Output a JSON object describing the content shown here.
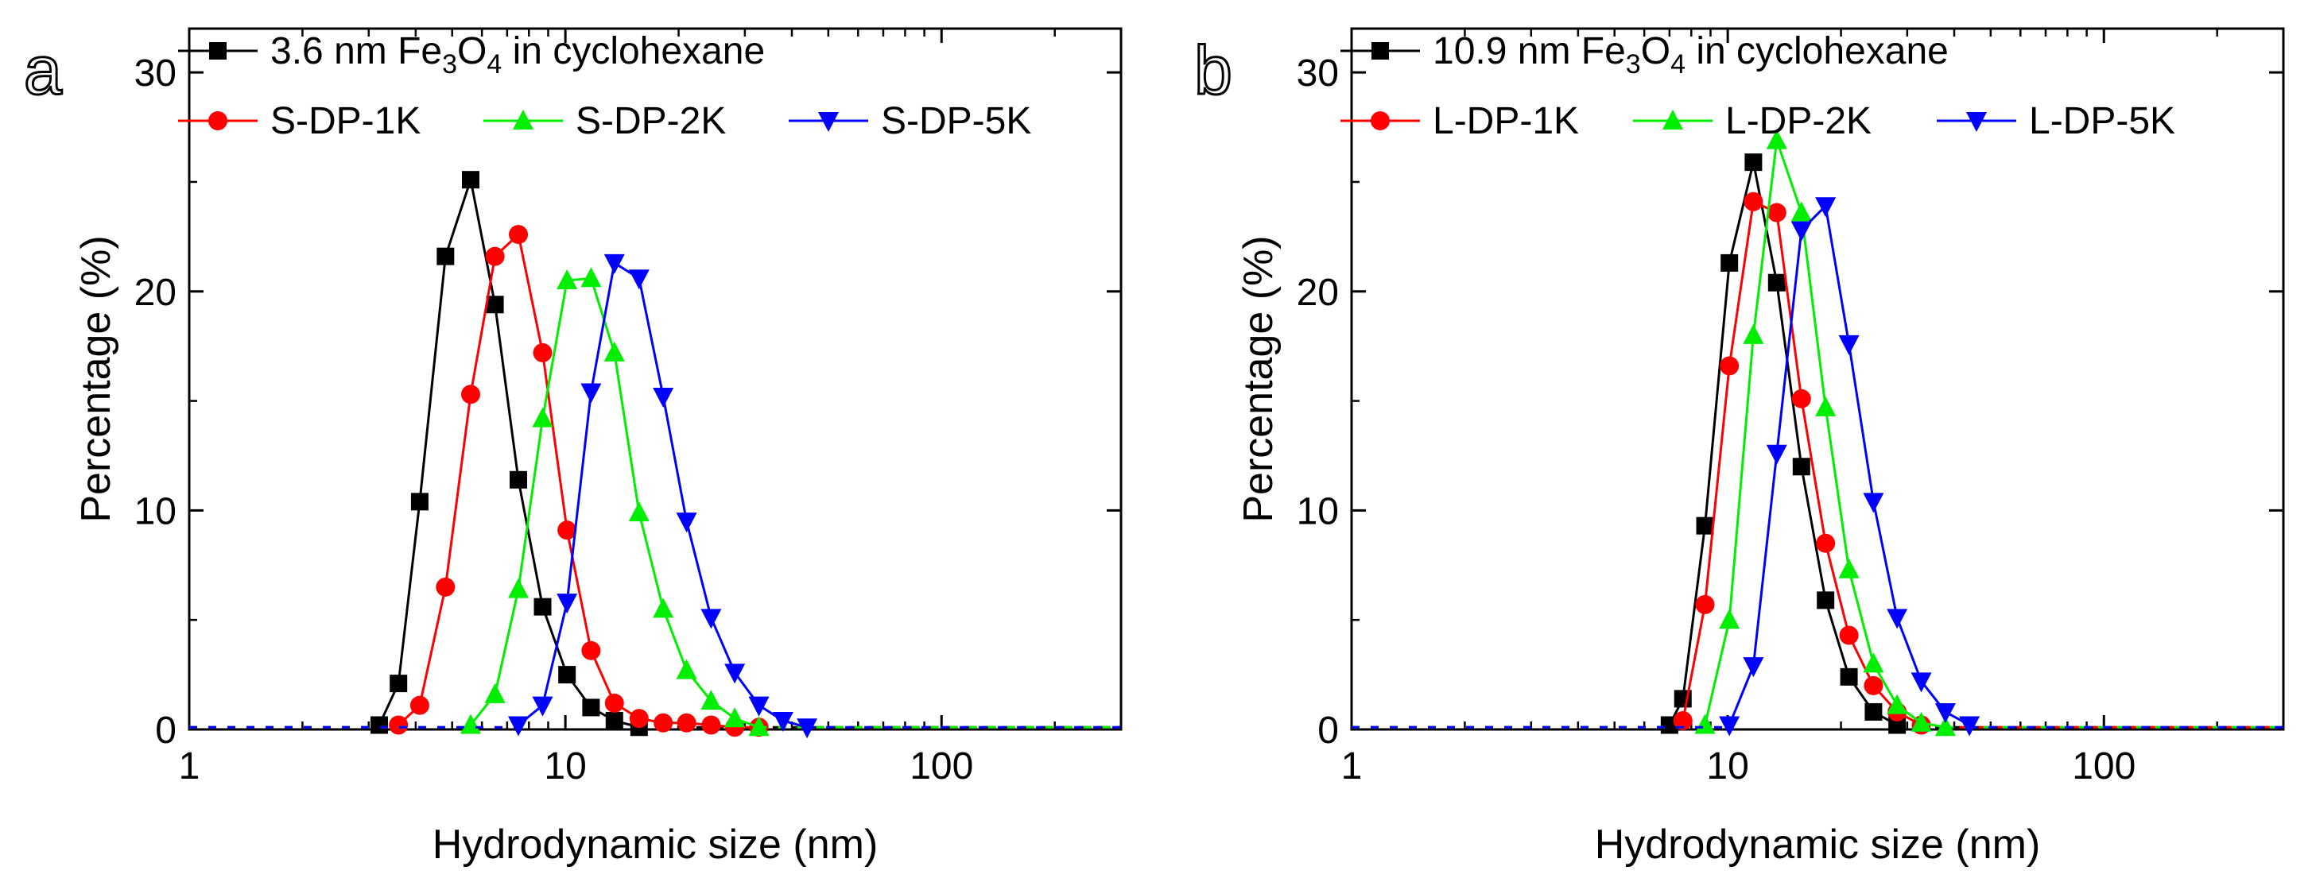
{
  "chart_data": [
    {
      "type": "line",
      "panel": "a",
      "title": "",
      "xlabel": "Hydrodynamic size (nm)",
      "ylabel": "Percentage (%)",
      "xscale": "log",
      "xlim": [
        1,
        300
      ],
      "ylim": [
        0,
        32
      ],
      "xticks": [
        1,
        10,
        100
      ],
      "xtick_labels": [
        "1",
        "10",
        "100"
      ],
      "yticks": [
        0,
        10,
        20,
        30
      ],
      "ytick_labels": [
        "0",
        "10",
        "20",
        "30"
      ],
      "grid": false,
      "legend_position": "top",
      "series": [
        {
          "name": "3.6 nm Fe3O4 in cyclohexane",
          "legend_parts": [
            [
              "3.6 nm Fe",
              false
            ],
            [
              "3",
              true
            ],
            [
              "O",
              false
            ],
            [
              "4",
              true
            ],
            [
              " in cyclohexane",
              false
            ]
          ],
          "color": "#000000",
          "marker": "square",
          "x": [
            3.2,
            3.6,
            4.1,
            4.8,
            5.6,
            6.5,
            7.5,
            8.7,
            10.1,
            11.7,
            13.5,
            15.7
          ],
          "y": [
            0.2,
            2.1,
            10.4,
            21.6,
            25.1,
            19.4,
            11.4,
            5.6,
            2.5,
            1.0,
            0.4,
            0.1
          ]
        },
        {
          "name": "S-DP-1K",
          "legend_parts": [
            [
              "S-DP-1K",
              false
            ]
          ],
          "color": "#ff0000",
          "marker": "circle",
          "x": [
            3.6,
            4.1,
            4.8,
            5.6,
            6.5,
            7.5,
            8.7,
            10.1,
            11.7,
            13.5,
            15.7,
            18.2,
            21.0,
            24.4,
            28.2,
            32.7
          ],
          "y": [
            0.2,
            1.1,
            6.5,
            15.3,
            21.6,
            22.6,
            17.2,
            9.1,
            3.6,
            1.2,
            0.5,
            0.3,
            0.3,
            0.2,
            0.1,
            0.1
          ]
        },
        {
          "name": "S-DP-2K",
          "legend_parts": [
            [
              "S-DP-2K",
              false
            ]
          ],
          "color": "#00ee00",
          "marker": "triangle-up",
          "x": [
            5.6,
            6.5,
            7.5,
            8.7,
            10.1,
            11.7,
            13.5,
            15.7,
            18.2,
            21.0,
            24.4,
            28.2,
            32.7
          ],
          "y": [
            0.2,
            1.6,
            6.4,
            14.2,
            20.5,
            20.6,
            17.2,
            9.9,
            5.5,
            2.7,
            1.3,
            0.5,
            0.1
          ]
        },
        {
          "name": "S-DP-5K",
          "legend_parts": [
            [
              "S-DP-5K",
              false
            ]
          ],
          "color": "#0000ff",
          "marker": "triangle-down",
          "x": [
            7.5,
            8.7,
            10.1,
            11.7,
            13.5,
            15.7,
            18.2,
            21.0,
            24.4,
            28.2,
            32.7,
            37.9,
            43.9
          ],
          "y": [
            0.2,
            1.1,
            5.8,
            15.4,
            21.3,
            20.6,
            15.2,
            9.5,
            5.1,
            2.6,
            1.1,
            0.4,
            0.1
          ]
        }
      ]
    },
    {
      "type": "line",
      "panel": "b",
      "title": "",
      "xlabel": "Hydrodynamic size (nm)",
      "ylabel": "Percentage (%)",
      "xscale": "log",
      "xlim": [
        1,
        300
      ],
      "ylim": [
        0,
        32
      ],
      "xticks": [
        1,
        10,
        100
      ],
      "xtick_labels": [
        "1",
        "10",
        "100"
      ],
      "yticks": [
        0,
        10,
        20,
        30
      ],
      "ytick_labels": [
        "0",
        "10",
        "20",
        "30"
      ],
      "grid": false,
      "legend_position": "top",
      "series": [
        {
          "name": "10.9 nm Fe3O4 in cyclohexane",
          "legend_parts": [
            [
              "10.9 nm Fe",
              false
            ],
            [
              "3",
              true
            ],
            [
              "O",
              false
            ],
            [
              "4",
              true
            ],
            [
              " in cyclohexane",
              false
            ]
          ],
          "color": "#000000",
          "marker": "square",
          "x": [
            7.0,
            7.6,
            8.7,
            10.1,
            11.7,
            13.5,
            15.7,
            18.2,
            21.0,
            24.4,
            28.2
          ],
          "y": [
            0.2,
            1.4,
            9.3,
            21.3,
            25.9,
            20.4,
            12.0,
            5.9,
            2.4,
            0.8,
            0.2
          ]
        },
        {
          "name": "L-DP-1K",
          "legend_parts": [
            [
              "L-DP-1K",
              false
            ]
          ],
          "color": "#ff0000",
          "marker": "circle",
          "x": [
            7.6,
            8.7,
            10.1,
            11.7,
            13.5,
            15.7,
            18.2,
            21.0,
            24.4,
            28.2,
            32.7
          ],
          "y": [
            0.4,
            5.7,
            16.6,
            24.1,
            23.6,
            15.1,
            8.5,
            4.3,
            2.0,
            0.8,
            0.2
          ]
        },
        {
          "name": "L-DP-2K",
          "legend_parts": [
            [
              "L-DP-2K",
              false
            ]
          ],
          "color": "#00ee00",
          "marker": "triangle-up",
          "x": [
            8.7,
            10.1,
            11.7,
            13.5,
            15.7,
            18.2,
            21.0,
            24.4,
            28.2,
            32.7,
            37.9
          ],
          "y": [
            0.2,
            5.0,
            18.0,
            26.9,
            23.6,
            14.7,
            7.3,
            3.0,
            1.1,
            0.3,
            0.1
          ]
        },
        {
          "name": "L-DP-5K",
          "legend_parts": [
            [
              "L-DP-5K",
              false
            ]
          ],
          "color": "#0000ff",
          "marker": "triangle-down",
          "x": [
            10.1,
            11.7,
            13.5,
            15.7,
            18.2,
            21.0,
            24.4,
            28.2,
            32.7,
            37.9,
            43.9
          ],
          "y": [
            0.2,
            2.9,
            12.6,
            22.8,
            23.9,
            17.6,
            10.4,
            5.1,
            2.2,
            0.8,
            0.2
          ]
        }
      ]
    }
  ]
}
